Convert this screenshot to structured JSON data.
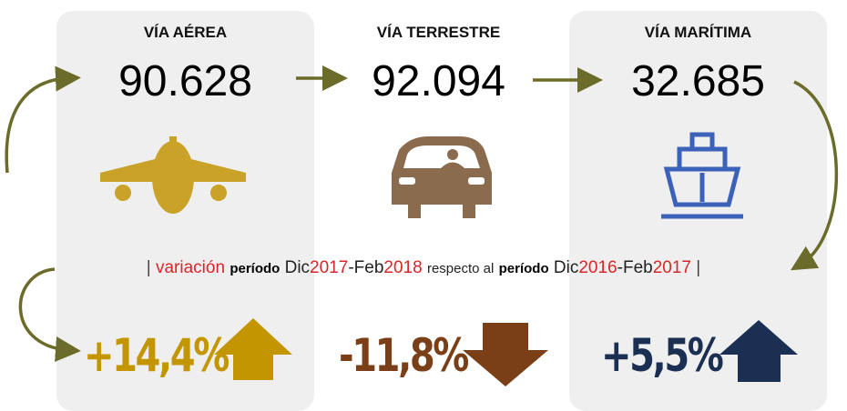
{
  "columns": [
    {
      "title": "VÍA AÉREA",
      "value": "90.628",
      "variation": "+14,4%"
    },
    {
      "title": "VÍA TERRESTRE",
      "value": "92.094",
      "variation": "-11,8%"
    },
    {
      "title": "VÍA MARÍTIMA",
      "value": "32.685",
      "variation": "+5,5%"
    }
  ],
  "note": [
    "|",
    "variación",
    "período",
    "Dic",
    "2017",
    "-Feb",
    "2018",
    "respecto al",
    "período",
    "Dic",
    "2016",
    "-Feb",
    "2017",
    "|"
  ]
}
